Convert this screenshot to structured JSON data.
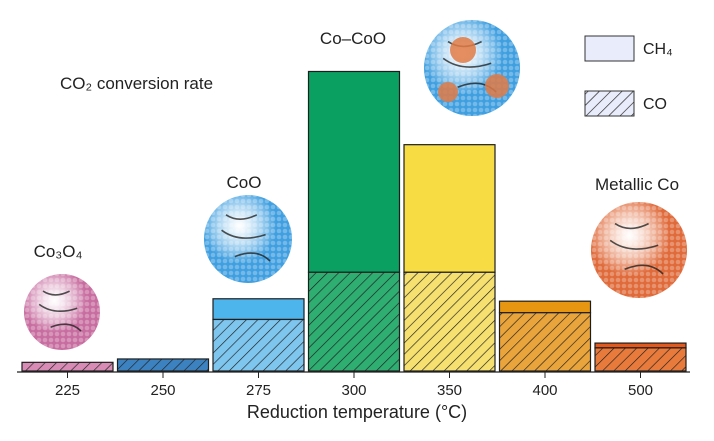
{
  "chart_data": {
    "type": "bar",
    "stacked": true,
    "title": "CO₂ conversion rate",
    "xlabel": "Reduction temperature (°C)",
    "ylabel": "",
    "categories": [
      "225",
      "250",
      "275",
      "300",
      "350",
      "400",
      "500"
    ],
    "series": [
      {
        "name": "CO",
        "pattern": "hatched",
        "values": [
          0.18,
          0.25,
          1.07,
          2.05,
          2.05,
          1.21,
          0.48
        ]
      },
      {
        "name": "CH₄",
        "pattern": "solid",
        "values": [
          0.0,
          0.0,
          0.43,
          4.17,
          2.65,
          0.24,
          0.1
        ]
      }
    ],
    "ylim": [
      0,
      6.5
    ],
    "grid": false,
    "legend": {
      "position": "top-right",
      "items": [
        "CH₄",
        "CO"
      ]
    },
    "bar_colors": {
      "solid": [
        "#d26ea2",
        "#1f6aa7",
        "#4eb4ec",
        "#0aa061",
        "#f7dc43",
        "#e79612",
        "#e5581b"
      ],
      "hatch_bg": [
        "#d88bb5",
        "#3c82c0",
        "#7fc6ef",
        "#2fae72",
        "#f5e070",
        "#eaa43c",
        "#e87a3c"
      ]
    },
    "annotations": [
      {
        "text": "Co₃O₄",
        "category": "225",
        "particle_color": "#c86da0"
      },
      {
        "text": "CoO",
        "category": "275",
        "particle_color": "#3f9fe0"
      },
      {
        "text": "Co–CoO",
        "category": "300",
        "particle_color": "#3f9fe0"
      },
      {
        "text": "Metallic Co",
        "category": "500",
        "particle_color": "#e06a3a"
      }
    ]
  }
}
